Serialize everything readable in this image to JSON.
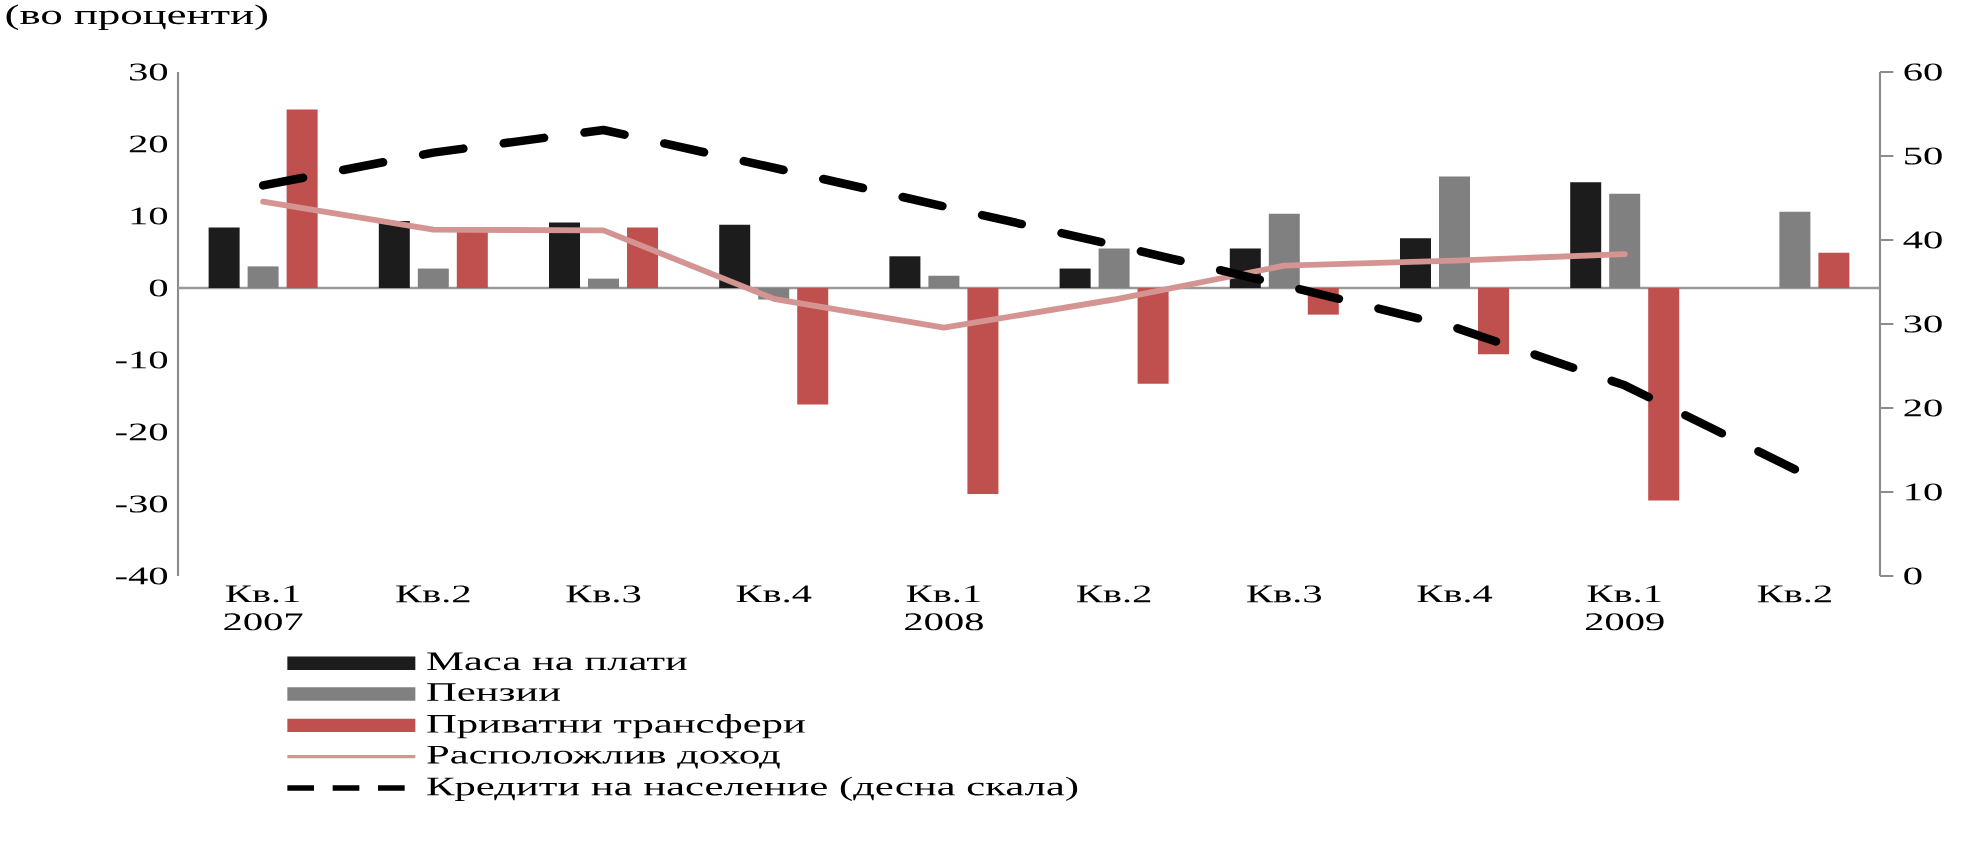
{
  "chart_data": {
    "type": "bar",
    "title": "(во проценти)",
    "categories": [
      "Кв.1 2007",
      "Кв.2",
      "Кв.3",
      "Кв.4",
      "Кв.1 2008",
      "Кв.2",
      "Кв.3",
      "Кв.4",
      "Кв.1 2009",
      "Кв.2"
    ],
    "series": [
      {
        "name": "Маса на плати",
        "color": "#1c1c1c",
        "values": [
          8.4,
          9.3,
          9.1,
          8.8,
          4.4,
          2.7,
          5.5,
          6.9,
          14.7,
          null
        ]
      },
      {
        "name": "Пензии",
        "color": "#808080",
        "values": [
          3.0,
          2.7,
          1.3,
          -1.6,
          1.7,
          5.5,
          10.3,
          15.5,
          13.1,
          10.6
        ]
      },
      {
        "name": "Приватни трансфери",
        "color": "#c0504d",
        "values": [
          24.8,
          7.8,
          8.4,
          -16.2,
          -28.6,
          -13.3,
          -3.7,
          -9.2,
          -29.5,
          4.9
        ]
      },
      {
        "name": "Расположлив доход",
        "type": "line",
        "color": "#d49592",
        "line_style": "solid",
        "values": [
          12.0,
          8.1,
          8.0,
          -1.5,
          -5.5,
          -1.6,
          3.1,
          3.8,
          4.7,
          null
        ]
      },
      {
        "name": "Кредити на население (десна скала)",
        "type": "line",
        "axis": "y2",
        "color": "#000000",
        "line_style": "dashed",
        "values": [
          46.5,
          50.4,
          53.1,
          48.6,
          44.0,
          39.4,
          34.6,
          29.6,
          22.7,
          12.7
        ]
      }
    ],
    "ylim": [
      -40,
      30
    ],
    "yticks": [
      -40,
      -30,
      -20,
      -10,
      0,
      10,
      20,
      30
    ],
    "y2lim": [
      0,
      60
    ],
    "y2ticks": [
      0,
      10,
      20,
      30,
      40,
      50,
      60
    ],
    "legend": "bottom"
  }
}
